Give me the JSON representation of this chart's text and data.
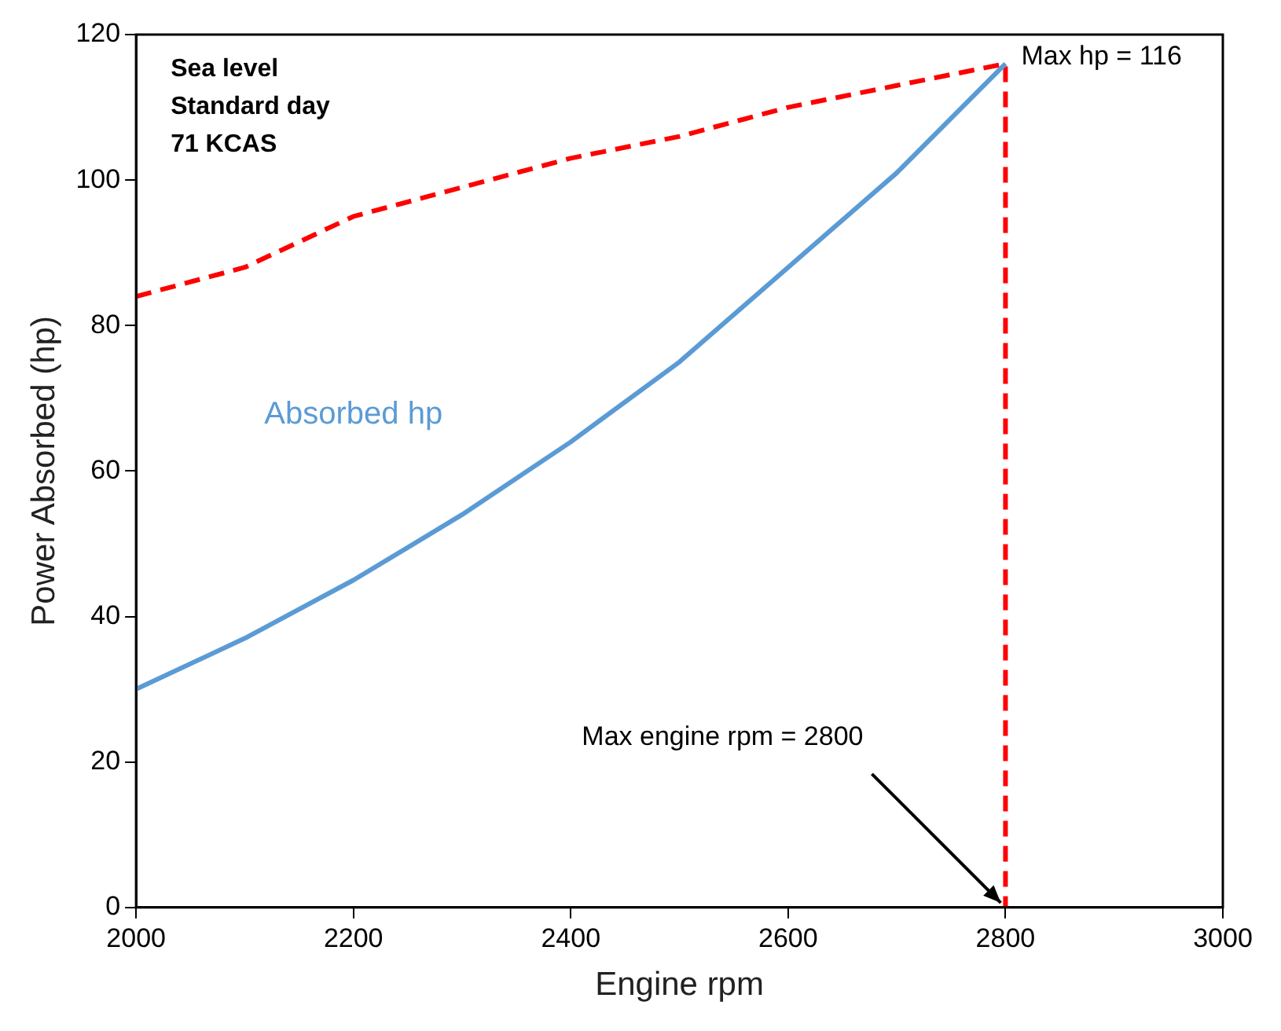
{
  "chart_data": {
    "type": "line",
    "xlabel": "Engine rpm",
    "ylabel": "Power Absorbed (hp)",
    "xlim": [
      2000,
      3000
    ],
    "xticks": [
      2000,
      2200,
      2400,
      2600,
      2800,
      3000
    ],
    "ylim": [
      0,
      120
    ],
    "yticks": [
      0,
      20,
      40,
      60,
      80,
      100,
      120
    ],
    "grid": false,
    "legend": false,
    "marker": "none",
    "series": [
      {
        "name": "Absorbed hp",
        "color": "#5b9bd5",
        "line_style": "solid",
        "x": [
          2000,
          2100,
          2200,
          2300,
          2400,
          2500,
          2600,
          2700,
          2800
        ],
        "values": [
          30,
          37,
          45,
          54,
          64,
          75,
          88,
          101,
          116
        ]
      },
      {
        "color": "#ff0000",
        "line_style": "dashed",
        "x": [
          2000,
          2100,
          2200,
          2300,
          2400,
          2500,
          2600,
          2700,
          2800,
          2800
        ],
        "values": [
          84,
          88,
          95,
          99,
          103,
          106,
          110,
          113,
          116,
          0
        ]
      }
    ],
    "annotations": [
      "Sea level",
      "Standard day",
      "71 KCAS",
      {
        "text": "Max hp = 116",
        "x": 2800,
        "y": 116
      },
      {
        "text": "Max engine rpm = 2800",
        "x": 2800,
        "y": 0
      }
    ]
  }
}
